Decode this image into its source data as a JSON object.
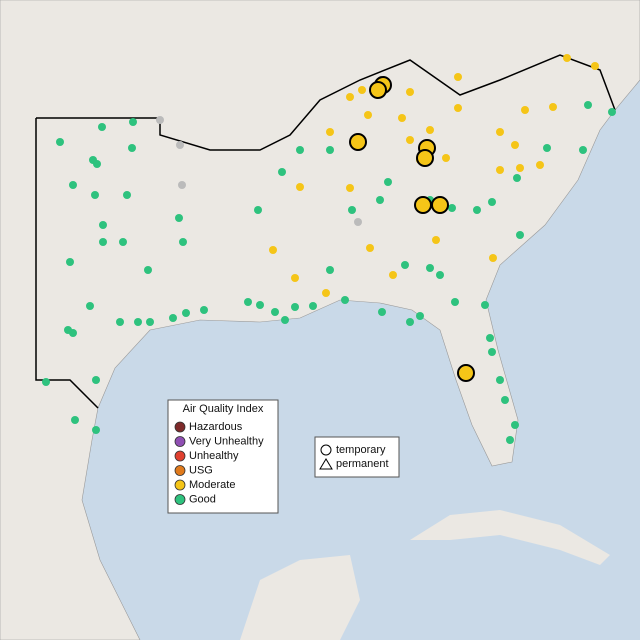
{
  "legend": {
    "title": "Air Quality Index",
    "items": [
      {
        "label": "Hazardous",
        "color": "#7e2a2a"
      },
      {
        "label": "Very Unhealthy",
        "color": "#8f4fb3"
      },
      {
        "label": "Unhealthy",
        "color": "#e0402f"
      },
      {
        "label": "USG",
        "color": "#e07a1c"
      },
      {
        "label": "Moderate",
        "color": "#f5c518"
      },
      {
        "label": "Good",
        "color": "#2ec27e"
      }
    ]
  },
  "shape_legend": {
    "items": [
      "temporary",
      "permanent"
    ]
  }
}
